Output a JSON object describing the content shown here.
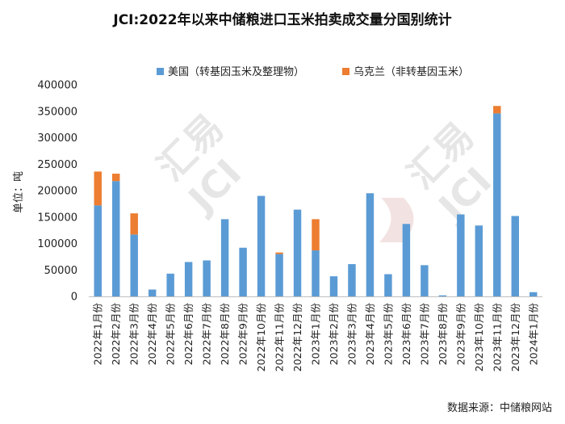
{
  "chart_data": {
    "type": "bar",
    "stacked": true,
    "title": "JCI:2022年以来中储粮进口玉米拍卖成交量分国别统计",
    "ylabel": "单位：吨",
    "xlabel": "",
    "ylim": [
      0,
      400000
    ],
    "yticks": [
      0,
      50000,
      100000,
      150000,
      200000,
      250000,
      300000,
      350000,
      400000
    ],
    "grid": false,
    "legend_position": "top",
    "categories": [
      "2022年1月份",
      "2022年2月份",
      "2022年3月份",
      "2022年4月份",
      "2022年5月份",
      "2022年6月份",
      "2022年7月份",
      "2022年8月份",
      "2022年9月份",
      "2022年10月份",
      "2022年11月份",
      "2022年12月份",
      "2023年1月份",
      "2023年2月份",
      "2023年3月份",
      "2023年4月份",
      "2023年5月份",
      "2023年6月份",
      "2023年7月份",
      "2023年8月份",
      "2023年9月份",
      "2023年10月份",
      "2023年11月份",
      "2023年12月份",
      "2024年1月份"
    ],
    "series": [
      {
        "name": "美国（转基因玉米及整理物）",
        "color": "#5b9bd5",
        "values": [
          172000,
          218000,
          117000,
          13000,
          43000,
          65000,
          68000,
          146000,
          92000,
          190000,
          80000,
          164000,
          87000,
          38000,
          61000,
          195000,
          42000,
          137000,
          59000,
          2000,
          155000,
          134000,
          346000,
          152000,
          8000
        ]
      },
      {
        "name": "乌克兰（非转基因玉米）",
        "color": "#ed7d31",
        "values": [
          64000,
          14000,
          40000,
          0,
          0,
          0,
          0,
          0,
          0,
          0,
          3000,
          0,
          59000,
          0,
          0,
          0,
          0,
          0,
          0,
          0,
          0,
          0,
          14000,
          0,
          0
        ]
      }
    ]
  },
  "source": "数据来源：中储粮网站",
  "watermark": {
    "brand_cn": "汇易",
    "brand_en": "JCI"
  }
}
